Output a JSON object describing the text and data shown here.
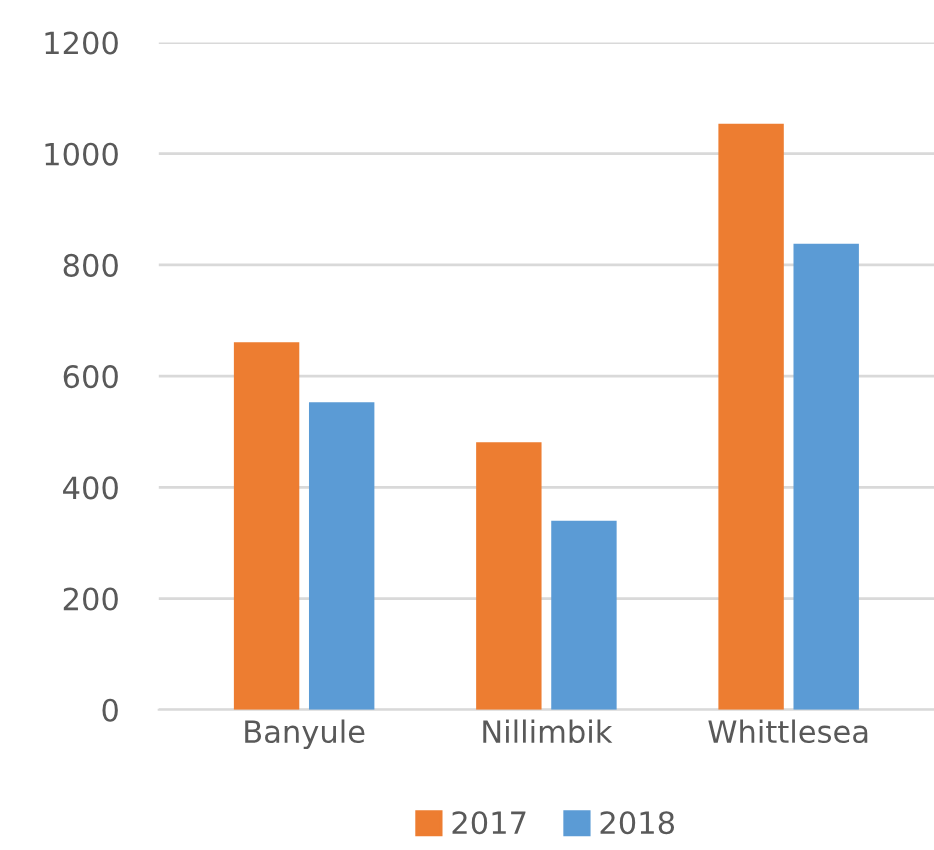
{
  "chart_data": {
    "type": "bar",
    "categories": [
      "Banyule",
      "Nillimbik",
      "Whittlesea"
    ],
    "series": [
      {
        "name": "2017",
        "color": "#ed7d31",
        "values": [
          661,
          481,
          1054
        ]
      },
      {
        "name": "2018",
        "color": "#5b9bd5",
        "values": [
          553,
          340,
          838
        ]
      }
    ],
    "ylim": [
      0,
      1200
    ],
    "yticks": [
      0,
      200,
      400,
      600,
      800,
      1000,
      1200
    ],
    "grid": "y",
    "legend": "bottom"
  }
}
